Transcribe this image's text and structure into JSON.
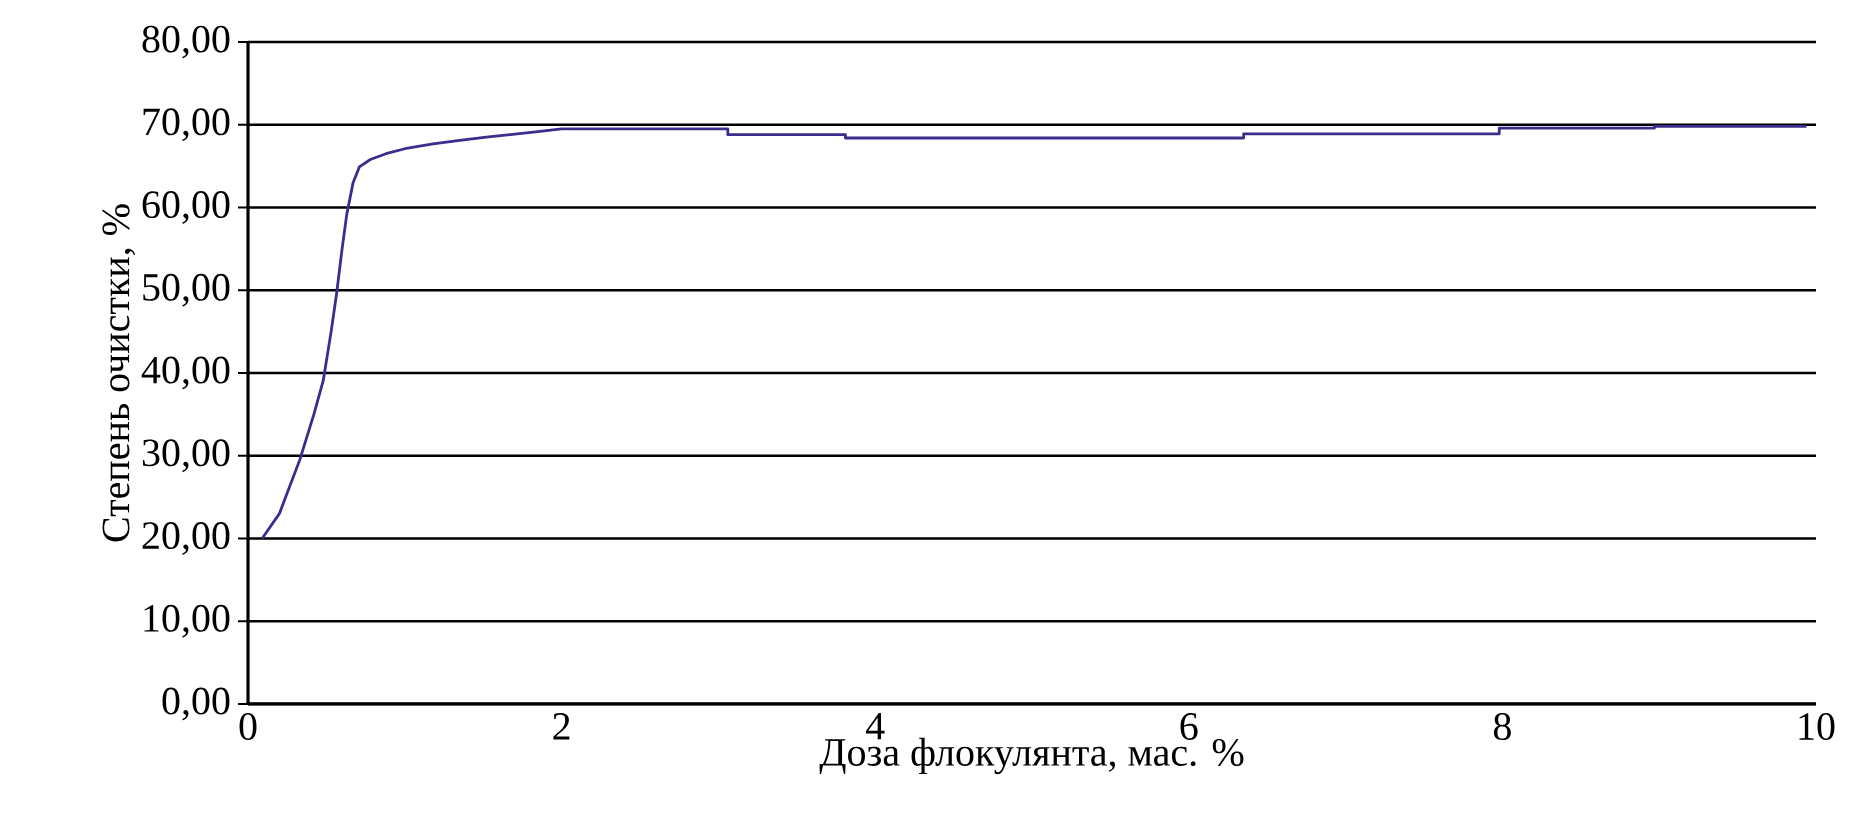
{
  "chart_data": {
    "type": "line",
    "xlabel": "Доза флокулянта, мас. %",
    "ylabel": "Степень очистки, %",
    "series": [
      {
        "color": "#3b2d8c",
        "x": [
          0.09,
          0.2,
          0.33,
          0.42,
          0.48,
          0.53,
          0.565,
          0.6,
          0.63,
          0.67,
          0.71,
          0.78,
          0.88,
          1.0,
          1.18,
          1.35,
          1.52,
          1.82,
          2.0,
          3.06,
          3.06,
          3.81,
          3.81,
          6.35,
          6.35,
          7.98,
          7.98,
          8.97,
          8.97,
          9.94
        ],
        "values": [
          20,
          23,
          29.5,
          35,
          39.1,
          45,
          49.6,
          55,
          59.2,
          63,
          64.9,
          65.8,
          66.5,
          67.1,
          67.7,
          68.1,
          68.5,
          69.1,
          69.5,
          69.5,
          68.8,
          68.8,
          68.4,
          68.4,
          68.9,
          68.9,
          69.6,
          69.6,
          69.8,
          69.8
        ]
      }
    ],
    "xlim": [
      0,
      10
    ],
    "xticks": [
      0,
      2,
      4,
      6,
      8,
      10
    ],
    "ylim": [
      0,
      80
    ],
    "yticks": [
      {
        "value": 0,
        "label": "0,00"
      },
      {
        "value": 10,
        "label": "10,00"
      },
      {
        "value": 20,
        "label": "20,00"
      },
      {
        "value": 30,
        "label": "30,00"
      },
      {
        "value": 40,
        "label": "40,00"
      },
      {
        "value": 50,
        "label": "50,00"
      },
      {
        "value": 60,
        "label": "60,00"
      },
      {
        "value": 70,
        "label": "70,00"
      },
      {
        "value": 80,
        "label": "80,00"
      }
    ],
    "grid": "y",
    "marker": "none",
    "line_style": "solid"
  }
}
